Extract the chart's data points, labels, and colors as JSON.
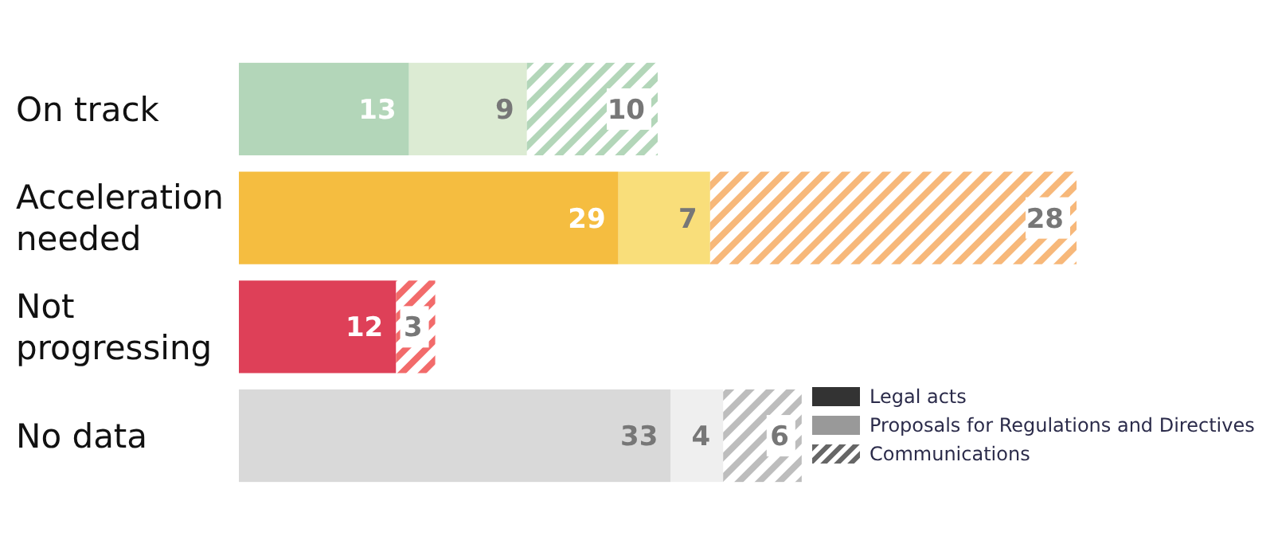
{
  "chart_data": {
    "type": "bar",
    "orientation": "horizontal",
    "stacked": true,
    "categories": [
      "On track",
      "Acceleration\nneeded",
      "Not\nprogressing",
      "No data"
    ],
    "series": [
      {
        "name": "Legal acts",
        "color": "#333333",
        "colors": [
          "#b3d6b9",
          "#f5bd40",
          "#de4058",
          "#d9d9d9"
        ],
        "values": [
          13,
          29,
          12,
          33
        ]
      },
      {
        "name": "Proposals for Regulations and Directives",
        "color": "#999999",
        "colors": [
          "#dcebd3",
          "#f9de7a",
          null,
          "#efefef"
        ],
        "values": [
          9,
          7,
          null,
          4
        ]
      },
      {
        "name": "Communications",
        "color": "#666666",
        "colors": [
          "#b3d6b9",
          "#f7b87a",
          "#f26b6b",
          "#bdbdbd"
        ],
        "values": [
          10,
          28,
          3,
          6
        ]
      }
    ],
    "data_labels": true,
    "legend": "bottom right",
    "tick_labels": "y"
  }
}
